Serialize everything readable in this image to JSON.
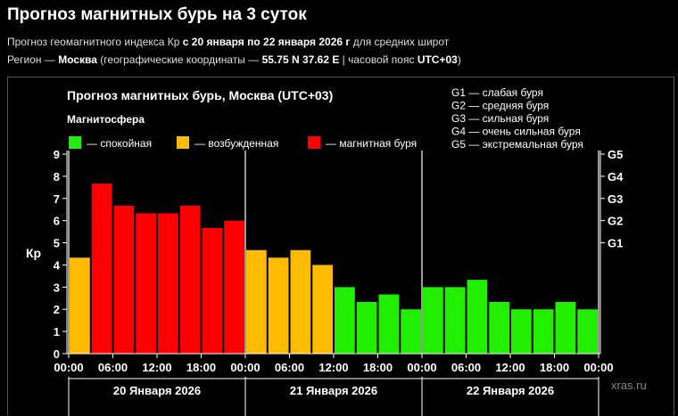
{
  "header": {
    "title": "Прогноз магнитных бурь на 3 суток",
    "line1_pre": "Прогноз геомагнитного индекса Кр ",
    "line1_bold": "с 20 января по 22 января 2026 г",
    "line1_post": " для средних широт",
    "line2_pre": "Регион — ",
    "line2_city": "Москва",
    "line2_mid": " (географические координаты — ",
    "line2_coords": "55.75 N 37.62 E",
    "line2_mid2": " | часовой пояс ",
    "line2_tz": "UTC+03",
    "line2_post": ")"
  },
  "chart_data": {
    "type": "bar",
    "title": "Прогноз магнитных бурь, Москва (UTC+03)",
    "legend_title": "Магнитосфера",
    "legend": [
      {
        "label": "— спокойная",
        "color": "#22ee00"
      },
      {
        "label": "— возбужденная",
        "color": "#ffbb00"
      },
      {
        "label": "— магнитная буря",
        "color": "#ff0000"
      }
    ],
    "g_scale": [
      "G1 — слабая буря",
      "G2 — средняя буря",
      "G3 — сильная буря",
      "G4 — очень сильная буря",
      "G5 — экстремальная буря"
    ],
    "ylabel": "Кр",
    "ylim": [
      0,
      9
    ],
    "yticks": [
      "0",
      "1",
      "2",
      "3",
      "4",
      "5",
      "6",
      "7",
      "8",
      "9"
    ],
    "g_ticks": [
      {
        "label": "G1",
        "kp": 5
      },
      {
        "label": "G2",
        "kp": 6
      },
      {
        "label": "G3",
        "kp": 7
      },
      {
        "label": "G4",
        "kp": 8
      },
      {
        "label": "G5",
        "kp": 9
      }
    ],
    "values": [
      4.33,
      7.67,
      6.67,
      6.33,
      6.33,
      6.67,
      5.67,
      6.0,
      4.67,
      4.33,
      4.67,
      4.0,
      3.0,
      2.33,
      2.67,
      2.0,
      3.0,
      3.0,
      3.33,
      2.33,
      2.0,
      2.0,
      2.33,
      2.0
    ],
    "colors": [
      "#ffbb00",
      "#ff0000",
      "#ff0000",
      "#ff0000",
      "#ff0000",
      "#ff0000",
      "#ff0000",
      "#ff0000",
      "#ffbb00",
      "#ffbb00",
      "#ffbb00",
      "#ffbb00",
      "#22ee00",
      "#22ee00",
      "#22ee00",
      "#22ee00",
      "#22ee00",
      "#22ee00",
      "#22ee00",
      "#22ee00",
      "#22ee00",
      "#22ee00",
      "#22ee00",
      "#22ee00"
    ],
    "xtick_labels": [
      "00:00",
      "06:00",
      "12:00",
      "18:00",
      "00:00",
      "06:00",
      "12:00",
      "18:00",
      "00:00",
      "06:00",
      "12:00",
      "18:00",
      "00:00"
    ],
    "days": [
      "20 Января 2026",
      "21 Января 2026",
      "22 Января 2026"
    ],
    "watermark": "xras.ru"
  }
}
